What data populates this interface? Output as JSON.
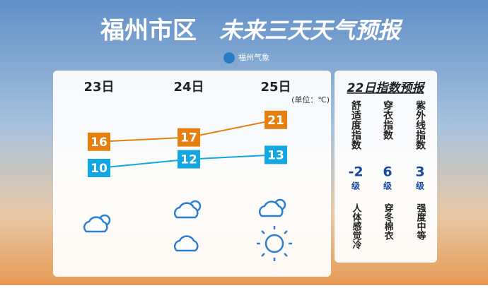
{
  "header": {
    "title": "福州市区",
    "subtitle": "未来三天天气预报",
    "source": "福州气象"
  },
  "forecast": {
    "days": [
      "23日",
      "24日",
      "25日"
    ],
    "unit": "(单位：℃)",
    "high": [
      16,
      17,
      21
    ],
    "low": [
      10,
      12,
      13
    ],
    "high_color": "#e5800f",
    "low_color": "#12a6e2"
  },
  "indices": {
    "title": "22日指数预报",
    "items": [
      {
        "name": "舒适度指数",
        "level": -2,
        "unit": "级",
        "desc": "人体感觉冷"
      },
      {
        "name": "穿衣指数",
        "level": 6,
        "unit": "级",
        "desc": "穿冬棉衣"
      },
      {
        "name": "紫外线指数",
        "level": 3,
        "unit": "级",
        "desc": "强度中等"
      }
    ]
  }
}
